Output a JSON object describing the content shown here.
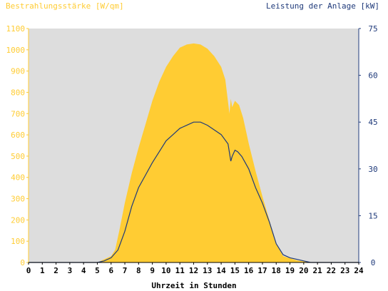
{
  "chart_data": {
    "type": "area",
    "left_axis_title": "Bestrahlungsstärke [W/qm]",
    "right_axis_title": "Leistung der Anlage [kW]",
    "xlabel": "Uhrzeit in Stunden",
    "xlim": [
      0,
      24
    ],
    "x_ticks": [
      "0",
      "1",
      "2",
      "3",
      "4",
      "5",
      "6",
      "7",
      "8",
      "9",
      "10",
      "11",
      "12",
      "13",
      "14",
      "15",
      "16",
      "17",
      "18",
      "19",
      "20",
      "21",
      "22",
      "23",
      "24"
    ],
    "left_ylim": [
      0,
      1100
    ],
    "left_ticks": [
      "0",
      "100",
      "200",
      "300",
      "400",
      "500",
      "600",
      "700",
      "800",
      "900",
      "1000",
      "1100"
    ],
    "right_ylim": [
      0,
      75
    ],
    "right_ticks": [
      "0",
      "15",
      "30",
      "45",
      "60",
      "75"
    ],
    "colors": {
      "irradiance": "#ffcc33",
      "power": "#1f3a7a",
      "plot_bg": "#dddddd",
      "left_axis": "#ffcc33",
      "right_axis": "#1f3a7a"
    },
    "series": [
      {
        "axis": "left",
        "style": "area",
        "x": [
          0,
          5,
          5.5,
          6,
          6.3,
          6.6,
          7,
          7.5,
          8,
          8.5,
          9,
          9.5,
          10,
          10.5,
          11,
          11.5,
          12,
          12.5,
          13,
          13.5,
          14,
          14.3,
          14.6,
          14.7,
          14.8,
          15,
          15.3,
          15.6,
          16,
          16.5,
          17,
          17.5,
          18,
          18.5,
          19,
          19.5,
          20,
          20.5,
          24
        ],
        "y": [
          0,
          0,
          15,
          30,
          60,
          150,
          280,
          420,
          540,
          650,
          760,
          850,
          920,
          970,
          1010,
          1025,
          1030,
          1025,
          1005,
          970,
          920,
          860,
          700,
          770,
          730,
          760,
          740,
          680,
          560,
          430,
          310,
          200,
          90,
          30,
          20,
          10,
          5,
          0,
          0
        ]
      },
      {
        "axis": "right",
        "style": "line",
        "x": [
          0,
          5,
          5.5,
          6,
          6.5,
          7,
          7.5,
          8,
          8.5,
          9,
          9.5,
          10,
          10.5,
          11,
          11.5,
          12,
          12.5,
          13,
          13.5,
          14,
          14.5,
          14.7,
          14.8,
          15,
          15.2,
          15.5,
          16,
          16.5,
          17,
          17.5,
          18,
          18.5,
          19,
          19.5,
          20,
          20.5,
          24
        ],
        "y": [
          0,
          0,
          0.5,
          1.5,
          4,
          10,
          18,
          24,
          28,
          32,
          35.5,
          39,
          41,
          43,
          44,
          45,
          45,
          44,
          42.5,
          41,
          38,
          32.5,
          34,
          36,
          35.5,
          34,
          30,
          24,
          19,
          13,
          6,
          2.5,
          1.5,
          1,
          0.5,
          0,
          0
        ]
      }
    ]
  }
}
